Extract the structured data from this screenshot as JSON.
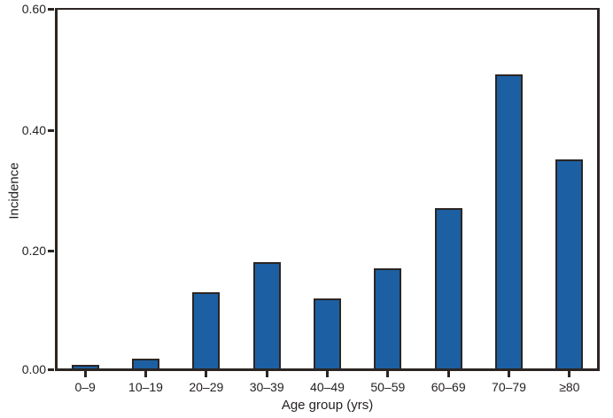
{
  "chart_data": {
    "type": "bar",
    "title": "",
    "xlabel": "Age group (yrs)",
    "ylabel": "Incidence",
    "categories": [
      "0–9",
      "10–19",
      "20–29",
      "30–39",
      "40–49",
      "50–59",
      "60–69",
      "70–79",
      "≥80"
    ],
    "values": [
      0.01,
      0.02,
      0.13,
      0.18,
      0.12,
      0.17,
      0.27,
      0.49,
      0.35
    ],
    "ylim": [
      0,
      0.6
    ],
    "yticks": [
      0.0,
      0.2,
      0.4,
      0.6
    ],
    "ytick_labels": [
      "0.00",
      "0.20",
      "0.40",
      "0.60"
    ],
    "grid": false,
    "legend_position": "none",
    "bar_fill_color": "#1c60a3",
    "bar_border_color": "#2b2523",
    "axis_color": "#2b2523",
    "text_color": "#231f20",
    "background_color": "#ffffff"
  }
}
